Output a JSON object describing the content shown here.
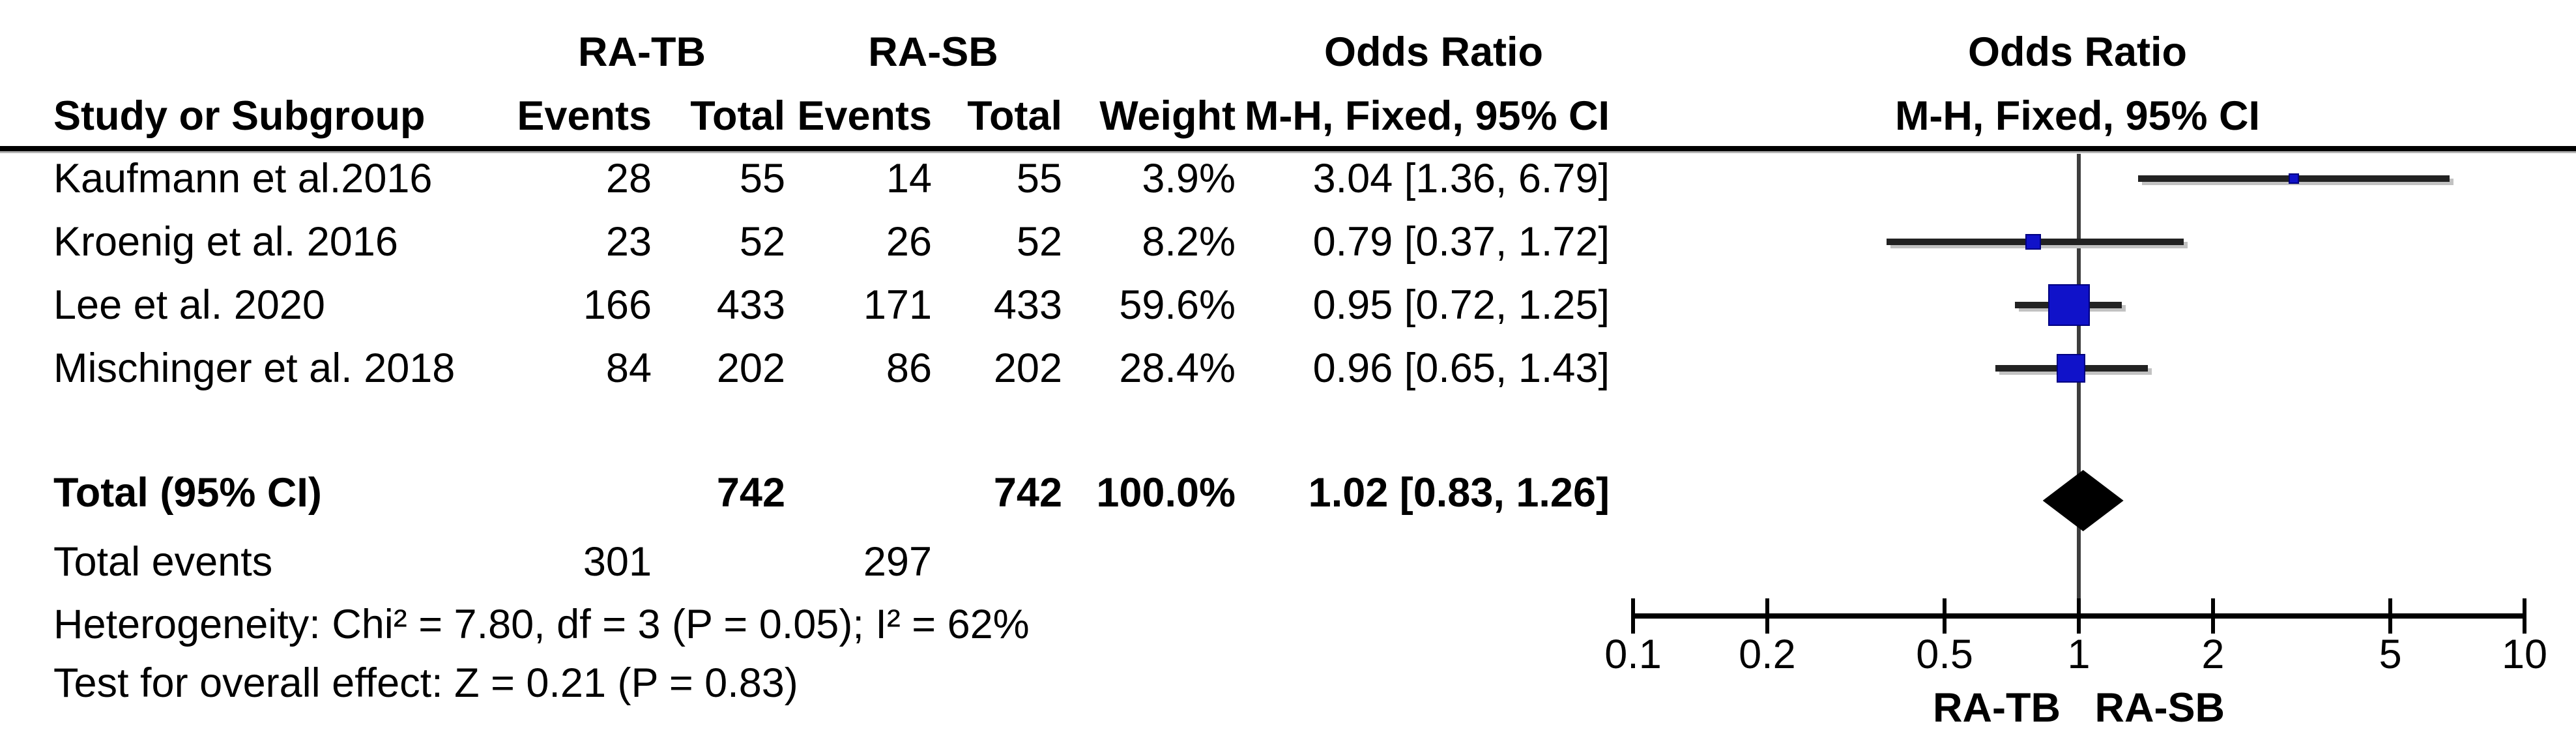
{
  "table": {
    "group1_header": "RA-TB",
    "group2_header": "RA-SB",
    "or_header_line1": "Odds Ratio",
    "or_header_line2": "M-H, Fixed, 95% CI",
    "plot_header_line1": "Odds Ratio",
    "plot_header_line2": "M-H, Fixed, 95% CI",
    "col_study": "Study or Subgroup",
    "col_events": "Events",
    "col_total": "Total",
    "col_weight": "Weight",
    "studies": [
      {
        "name": "Kaufmann et al.2016",
        "events_tb": "28",
        "total_tb": "55",
        "events_sb": "14",
        "total_sb": "55",
        "weight": "3.9%",
        "or_ci": "3.04 [1.36, 6.79]"
      },
      {
        "name": "Kroenig et al. 2016",
        "events_tb": "23",
        "total_tb": "52",
        "events_sb": "26",
        "total_sb": "52",
        "weight": "8.2%",
        "or_ci": "0.79 [0.37, 1.72]"
      },
      {
        "name": "Lee et al. 2020",
        "events_tb": "166",
        "total_tb": "433",
        "events_sb": "171",
        "total_sb": "433",
        "weight": "59.6%",
        "or_ci": "0.95 [0.72, 1.25]"
      },
      {
        "name": "Mischinger et al. 2018",
        "events_tb": "84",
        "total_tb": "202",
        "events_sb": "86",
        "total_sb": "202",
        "weight": "28.4%",
        "or_ci": "0.96 [0.65, 1.43]"
      }
    ],
    "total_row": {
      "label": "Total (95% CI)",
      "total_tb": "742",
      "total_sb": "742",
      "weight": "100.0%",
      "or_ci": "1.02 [0.83, 1.26]"
    },
    "total_events_row": {
      "label": "Total events",
      "events_tb": "301",
      "events_sb": "297"
    },
    "heterogeneity": "Heterogeneity: Chi² = 7.80, df = 3 (P = 0.05); I² = 62%",
    "overall_effect": "Test for overall effect: Z = 0.21 (P = 0.83)"
  },
  "chart_data": {
    "type": "scatter",
    "subtype": "forest-plot",
    "x_scale": "log10",
    "xlim": [
      0.1,
      10
    ],
    "x_ticks": [
      0.1,
      0.2,
      0.5,
      1,
      2,
      5,
      10
    ],
    "x_tick_labels": [
      "0.1",
      "0.2",
      "0.5",
      "1",
      "2",
      "5",
      "10"
    ],
    "no_effect_value": 1,
    "favours_left_label": "RA-TB",
    "favours_right_label": "RA-SB",
    "series": [
      {
        "study": "Kaufmann et al.2016",
        "or": 3.04,
        "ci_low": 1.36,
        "ci_high": 6.79,
        "weight_pct": 3.9
      },
      {
        "study": "Kroenig et al. 2016",
        "or": 0.79,
        "ci_low": 0.37,
        "ci_high": 1.72,
        "weight_pct": 8.2
      },
      {
        "study": "Lee et al. 2020",
        "or": 0.95,
        "ci_low": 0.72,
        "ci_high": 1.25,
        "weight_pct": 59.6
      },
      {
        "study": "Mischinger et al. 2018",
        "or": 0.96,
        "ci_low": 0.65,
        "ci_high": 1.43,
        "weight_pct": 28.4
      }
    ],
    "total": {
      "or": 1.02,
      "ci_low": 0.83,
      "ci_high": 1.26,
      "weight_pct": 100.0
    },
    "marker_color": "#1012c9",
    "ci_line_color": "#222222",
    "diamond_color": "#000000",
    "no_effect_line_color": "#3d3d3d"
  }
}
